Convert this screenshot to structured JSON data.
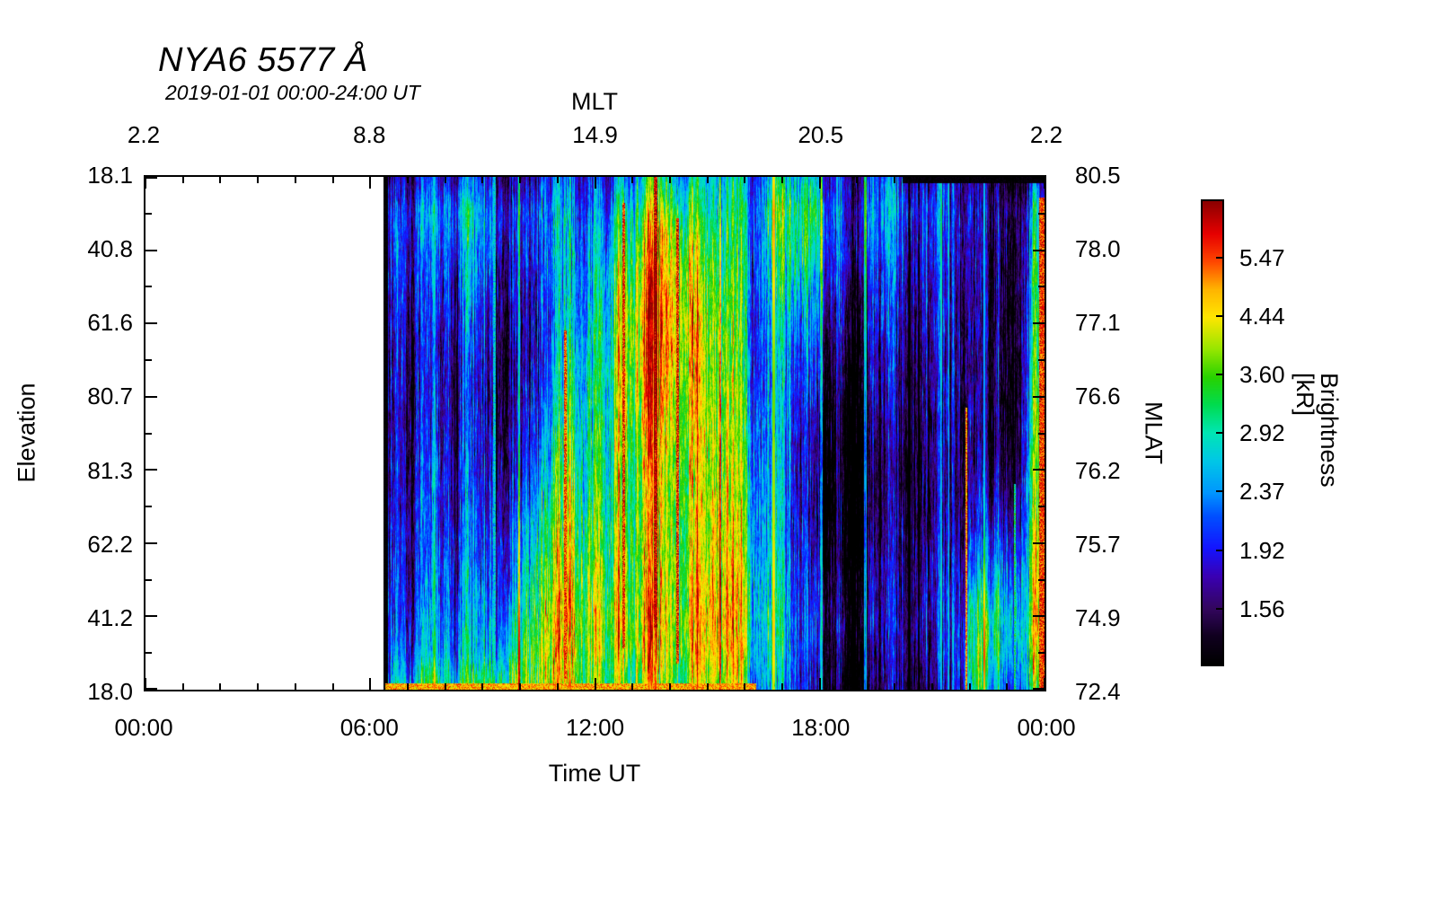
{
  "title": "NYA6 5577 Å",
  "subtitle": "2019-01-01 00:00-24:00 UT",
  "axes": {
    "top": {
      "label": "MLT",
      "ticks": [
        "2.2",
        "8.8",
        "14.9",
        "20.5",
        "2.2"
      ]
    },
    "bottom": {
      "label": "Time UT",
      "ticks": [
        "00:00",
        "06:00",
        "12:00",
        "18:00",
        "00:00"
      ]
    },
    "left": {
      "label": "Elevation",
      "ticks": [
        "18.1",
        "40.8",
        "61.6",
        "80.7",
        "81.3",
        "62.2",
        "41.2",
        "18.0"
      ]
    },
    "right": {
      "label": "MLAT",
      "ticks": [
        "80.5",
        "78.0",
        "77.1",
        "76.6",
        "76.2",
        "75.7",
        "74.9",
        "72.4"
      ]
    }
  },
  "colorbar": {
    "label": "Brightness [kR]",
    "tick_labels": [
      "5.47",
      "4.44",
      "3.60",
      "2.92",
      "2.37",
      "1.92",
      "1.56"
    ],
    "tick_values": [
      5.47,
      4.44,
      3.6,
      2.92,
      2.37,
      1.92,
      1.56
    ],
    "min": 1.27,
    "max": 6.73,
    "scale": "log",
    "stops": [
      [
        0,
        "#000000"
      ],
      [
        0.06,
        "#10001f"
      ],
      [
        0.12,
        "#33065e"
      ],
      [
        0.19,
        "#3a00b4"
      ],
      [
        0.25,
        "#1414ff"
      ],
      [
        0.32,
        "#0050ff"
      ],
      [
        0.37,
        "#0096ff"
      ],
      [
        0.44,
        "#00c8e6"
      ],
      [
        0.5,
        "#00e6b4"
      ],
      [
        0.56,
        "#00dc50"
      ],
      [
        0.62,
        "#28d200"
      ],
      [
        0.68,
        "#96e600"
      ],
      [
        0.75,
        "#ffe600"
      ],
      [
        0.81,
        "#ffb400"
      ],
      [
        0.87,
        "#ff4600"
      ],
      [
        0.93,
        "#e60000"
      ],
      [
        1,
        "#8c0000"
      ]
    ]
  },
  "chart_data": {
    "type": "heatmap",
    "title": "NYA6 5577 Å",
    "subtitle": "2019-01-01 00:00-24:00 UT",
    "x_axis": "Time UT [hours]",
    "x_range": [
      0,
      24
    ],
    "y_axis": "Elevation scan, top 18.1° through zenith to bottom 18.0°",
    "value_unit": "kR",
    "data_start_hour": 6.33,
    "first_col_hour": 6.0,
    "col_width_hours": 0.5,
    "row_order": "each column lists 16 elevation bins from top tick 18.1 to bottom tick 18.0",
    "values_kR": [
      [
        1.6,
        2.0,
        2.1,
        2.0,
        1.9,
        1.9,
        1.8,
        1.8,
        1.9,
        1.9,
        2.0,
        2.0,
        2.1,
        2.2,
        2.3,
        2.6
      ],
      [
        1.9,
        2.2,
        2.3,
        2.2,
        2.1,
        2.0,
        2.0,
        1.9,
        1.9,
        2.0,
        2.0,
        2.1,
        2.1,
        2.2,
        2.4,
        3.0
      ],
      [
        1.8,
        2.1,
        2.0,
        1.9,
        1.8,
        1.7,
        1.7,
        1.7,
        1.8,
        1.8,
        1.9,
        1.9,
        2.0,
        2.1,
        2.3,
        2.9
      ],
      [
        1.7,
        2.0,
        1.9,
        1.8,
        1.7,
        1.6,
        1.6,
        1.7,
        1.7,
        1.8,
        1.8,
        1.9,
        2.0,
        2.1,
        2.3,
        3.0
      ],
      [
        1.9,
        2.4,
        2.2,
        2.0,
        1.9,
        1.8,
        1.7,
        1.7,
        1.8,
        1.8,
        1.9,
        2.0,
        2.0,
        2.2,
        2.4,
        3.1
      ],
      [
        2.0,
        2.5,
        2.4,
        2.2,
        2.0,
        1.9,
        1.8,
        1.8,
        1.8,
        1.9,
        2.0,
        2.0,
        2.1,
        2.3,
        2.5,
        3.2
      ],
      [
        1.8,
        2.2,
        2.1,
        1.9,
        1.8,
        1.7,
        1.6,
        1.6,
        1.7,
        1.8,
        1.9,
        2.0,
        2.1,
        2.3,
        2.6,
        3.3
      ],
      [
        1.7,
        2.0,
        1.9,
        1.8,
        1.7,
        1.6,
        1.6,
        1.6,
        1.7,
        1.8,
        1.9,
        2.1,
        2.3,
        2.6,
        3.0,
        3.6
      ],
      [
        1.9,
        2.2,
        2.1,
        2.0,
        1.9,
        1.9,
        2.0,
        2.1,
        2.2,
        2.4,
        2.7,
        3.0,
        3.3,
        3.6,
        3.9,
        4.2
      ],
      [
        2.1,
        2.4,
        2.3,
        2.2,
        2.1,
        2.1,
        2.2,
        2.4,
        2.6,
        2.9,
        3.2,
        3.5,
        3.9,
        4.2,
        4.4,
        4.0
      ],
      [
        2.0,
        2.3,
        2.4,
        2.3,
        2.4,
        2.6,
        2.8,
        3.0,
        3.2,
        3.4,
        3.6,
        3.8,
        4.1,
        4.4,
        4.2,
        3.8
      ],
      [
        2.1,
        2.4,
        2.5,
        2.6,
        2.7,
        2.8,
        3.0,
        3.1,
        3.2,
        3.3,
        3.5,
        3.7,
        4.0,
        4.3,
        4.1,
        3.7
      ],
      [
        2.2,
        2.6,
        2.8,
        3.0,
        3.2,
        3.3,
        3.4,
        3.5,
        3.6,
        3.7,
        3.8,
        4.0,
        4.3,
        4.5,
        4.3,
        3.9
      ],
      [
        2.6,
        3.2,
        3.6,
        4.0,
        4.4,
        4.6,
        4.6,
        4.4,
        4.2,
        4.0,
        3.9,
        4.1,
        4.4,
        4.7,
        4.4,
        4.0
      ],
      [
        3.0,
        3.8,
        4.4,
        4.8,
        5.2,
        5.4,
        5.2,
        4.9,
        4.6,
        4.4,
        4.3,
        4.4,
        4.6,
        4.9,
        4.6,
        4.1
      ],
      [
        3.4,
        4.6,
        5.4,
        5.8,
        6.0,
        5.8,
        5.5,
        5.2,
        5.0,
        4.8,
        4.6,
        4.6,
        4.8,
        5.1,
        4.8,
        4.2
      ],
      [
        3.0,
        4.0,
        4.8,
        5.2,
        5.4,
        5.3,
        5.1,
        4.9,
        4.7,
        4.5,
        4.4,
        4.4,
        4.6,
        4.9,
        4.6,
        4.0
      ],
      [
        2.5,
        3.0,
        3.4,
        3.8,
        4.0,
        4.1,
        4.1,
        4.0,
        3.9,
        3.9,
        3.9,
        4.0,
        4.2,
        4.4,
        4.2,
        3.8
      ],
      [
        2.3,
        2.6,
        2.8,
        3.0,
        3.2,
        3.3,
        3.4,
        3.5,
        3.6,
        3.7,
        3.8,
        3.9,
        4.0,
        4.2,
        4.0,
        3.6
      ],
      [
        2.2,
        2.5,
        2.6,
        2.7,
        2.8,
        2.9,
        3.0,
        3.1,
        3.2,
        3.3,
        3.4,
        3.5,
        3.7,
        3.9,
        3.7,
        3.3
      ],
      [
        2.2,
        2.5,
        2.4,
        2.3,
        2.2,
        2.2,
        2.3,
        2.4,
        2.5,
        2.6,
        2.7,
        2.8,
        2.9,
        3.0,
        2.9,
        2.6
      ],
      [
        2.4,
        2.8,
        2.7,
        2.5,
        2.3,
        2.2,
        2.1,
        2.1,
        2.2,
        2.2,
        2.3,
        2.4,
        2.5,
        2.6,
        2.5,
        2.3
      ],
      [
        2.6,
        3.1,
        3.0,
        2.7,
        2.4,
        2.2,
        2.1,
        2.0,
        1.9,
        1.9,
        1.9,
        2.0,
        2.1,
        2.2,
        2.1,
        2.0
      ],
      [
        2.5,
        3.0,
        2.9,
        2.6,
        2.3,
        2.0,
        1.8,
        1.7,
        1.6,
        1.6,
        1.6,
        1.7,
        1.8,
        1.9,
        1.8,
        1.7
      ],
      [
        2.1,
        2.4,
        2.3,
        2.1,
        1.9,
        1.7,
        1.6,
        1.5,
        1.4,
        1.4,
        1.4,
        1.5,
        1.6,
        1.7,
        1.6,
        1.5
      ],
      [
        2.0,
        2.2,
        2.1,
        2.0,
        1.8,
        1.6,
        1.5,
        1.4,
        1.35,
        1.35,
        1.4,
        1.4,
        1.5,
        1.6,
        1.5,
        1.4
      ],
      [
        2.0,
        2.2,
        2.1,
        1.9,
        1.8,
        1.7,
        1.6,
        1.5,
        1.4,
        1.4,
        1.4,
        1.5,
        1.6,
        1.6,
        1.5,
        1.4
      ],
      [
        2.1,
        2.4,
        2.2,
        2.0,
        1.9,
        1.8,
        1.7,
        1.6,
        1.5,
        1.5,
        1.5,
        1.6,
        1.7,
        1.7,
        1.6,
        1.5
      ],
      [
        1.9,
        2.1,
        2.0,
        1.9,
        1.8,
        1.7,
        1.6,
        1.6,
        1.5,
        1.5,
        1.6,
        1.6,
        1.7,
        1.8,
        1.7,
        1.6
      ],
      [
        1.8,
        2.0,
        1.9,
        1.8,
        1.7,
        1.6,
        1.6,
        1.5,
        1.5,
        1.5,
        1.5,
        1.6,
        1.7,
        1.7,
        1.6,
        1.5
      ],
      [
        1.6,
        1.8,
        1.7,
        1.6,
        1.6,
        1.5,
        1.5,
        1.4,
        1.4,
        1.4,
        1.4,
        1.5,
        1.6,
        1.6,
        1.5,
        1.4
      ],
      [
        1.4,
        1.5,
        1.45,
        1.4,
        1.4,
        1.35,
        1.35,
        1.3,
        1.3,
        1.3,
        1.35,
        1.4,
        1.5,
        1.6,
        1.7,
        1.6
      ],
      [
        1.35,
        1.5,
        1.45,
        1.4,
        1.38,
        1.35,
        1.33,
        1.32,
        1.35,
        1.45,
        1.6,
        1.9,
        2.3,
        2.8,
        3.2,
        2.8
      ],
      [
        1.35,
        1.5,
        1.45,
        1.42,
        1.4,
        1.38,
        1.36,
        1.35,
        1.4,
        1.5,
        1.7,
        2.0,
        2.4,
        2.8,
        2.6,
        2.2
      ],
      [
        1.5,
        1.8,
        1.7,
        1.65,
        1.6,
        1.55,
        1.5,
        1.5,
        1.55,
        1.7,
        1.9,
        2.2,
        2.6,
        3.0,
        2.8,
        2.4
      ],
      [
        2.0,
        2.6,
        2.8,
        2.9,
        3.0,
        3.1,
        3.2,
        3.3,
        3.4,
        3.5,
        3.6,
        3.8,
        4.0,
        4.2,
        4.0,
        3.4
      ]
    ],
    "features": [
      {
        "t0": 6.33,
        "t1": 6.47,
        "e0": 0,
        "e1": 1,
        "v": 1.28,
        "mode": "min"
      },
      {
        "t0": 9.26,
        "t1": 9.34,
        "e0": 0,
        "e1": 1,
        "v": 2.7,
        "mode": "max"
      },
      {
        "t0": 11.17,
        "t1": 11.23,
        "e0": 0.3,
        "e1": 0.98,
        "v": 5.6,
        "mode": "max"
      },
      {
        "t0": 12.71,
        "t1": 12.79,
        "e0": 0.05,
        "e1": 0.92,
        "v": 5.8,
        "mode": "max"
      },
      {
        "t0": 13.55,
        "t1": 13.65,
        "e0": 0,
        "e1": 0.88,
        "v": 6.3,
        "mode": "max"
      },
      {
        "t0": 14.16,
        "t1": 14.24,
        "e0": 0.08,
        "e1": 0.95,
        "v": 5.9,
        "mode": "max"
      },
      {
        "t0": 21.87,
        "t1": 21.93,
        "e0": 0.45,
        "e1": 1,
        "v": 5.2,
        "mode": "max"
      },
      {
        "t0": 23.17,
        "t1": 23.23,
        "e0": 0.6,
        "e1": 1,
        "v": 3.2,
        "mode": "max"
      },
      {
        "t0": 23.84,
        "t1": 24.0,
        "e0": 0.04,
        "e1": 1,
        "v": 5.8,
        "mode": "max"
      },
      {
        "t0": 6.4,
        "t1": 16.3,
        "e0": 0.988,
        "e1": 1,
        "v": 5.0,
        "mode": "max"
      },
      {
        "t0": 20.2,
        "t1": 24.0,
        "e0": 0,
        "e1": 0.012,
        "v": 1.3,
        "mode": "min"
      }
    ]
  }
}
